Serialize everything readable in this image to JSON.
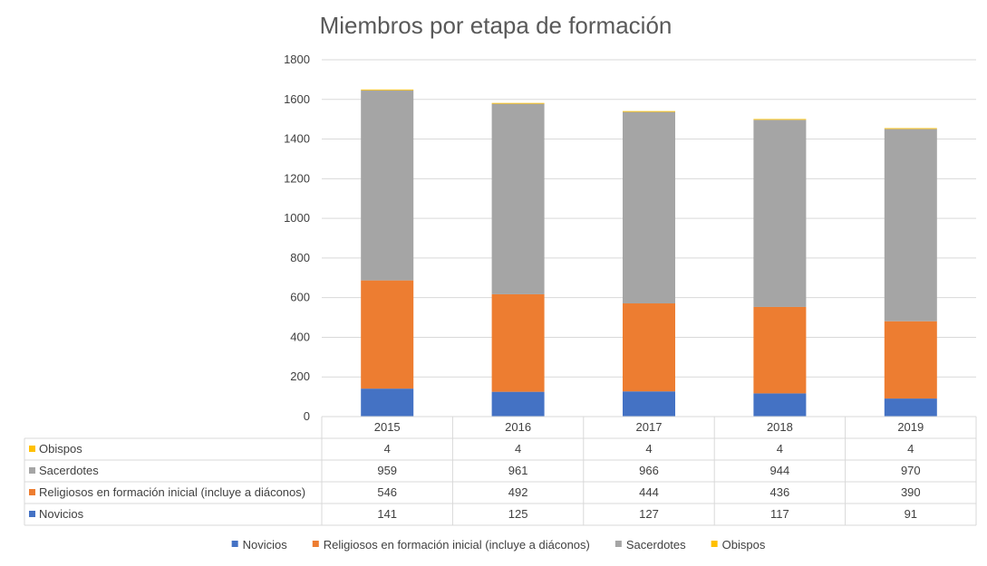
{
  "chart_data": {
    "type": "bar",
    "stacked": true,
    "title": "Miembros por etapa de formación",
    "categories": [
      "2015",
      "2016",
      "2017",
      "2018",
      "2019"
    ],
    "ylim": [
      0,
      1800
    ],
    "yticks": [
      0,
      200,
      400,
      600,
      800,
      1000,
      1200,
      1400,
      1600,
      1800
    ],
    "grid": true,
    "legend_position": "bottom",
    "data_table": true,
    "series": [
      {
        "name": "Novicios",
        "color": "#4472C4",
        "values": [
          141,
          125,
          127,
          117,
          91
        ]
      },
      {
        "name": "Religiosos en formación inicial (incluye a diáconos)",
        "color": "#ED7D31",
        "values": [
          546,
          492,
          444,
          436,
          390
        ]
      },
      {
        "name": "Sacerdotes",
        "color": "#A5A5A5",
        "values": [
          959,
          961,
          966,
          944,
          970
        ]
      },
      {
        "name": "Obispos",
        "color": "#FFC000",
        "values": [
          4,
          4,
          4,
          4,
          4
        ]
      }
    ]
  }
}
